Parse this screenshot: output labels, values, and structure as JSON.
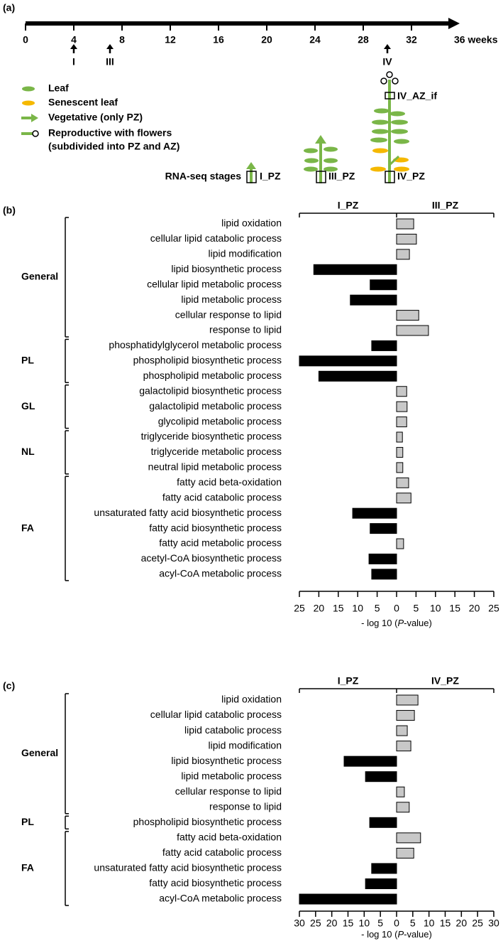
{
  "timeline": {
    "label": "(a)",
    "xlim": [
      0,
      36
    ],
    "ticks": [
      0,
      4,
      8,
      12,
      16,
      20,
      24,
      28,
      32,
      {
        "value": 36,
        "label": "36 weeks"
      }
    ],
    "stages": [
      {
        "label": "I",
        "week": 4
      },
      {
        "label": "III",
        "week": 7
      },
      {
        "label": "IV",
        "week": 30
      }
    ],
    "legend": {
      "leaf": "Leaf",
      "senescent": "Senescent leaf",
      "vegetative": "Vegetative (only PZ)",
      "reproductive": [
        "Reproductive with flowers",
        "(subdivided into PZ and AZ)"
      ]
    },
    "rnaseq_label": "RNA-seq stages",
    "samples": {
      "i_pz": "I_PZ",
      "iii_pz": "III_PZ",
      "iv_pz": "IV_PZ",
      "iv_az_if": "IV_AZ_if"
    }
  },
  "chart_data": [
    {
      "type": "bar",
      "orientation": "horizontal",
      "label": "(b)",
      "categories": [
        "lipid oxidation",
        "cellular lipid catabolic process",
        "lipid modification",
        "lipid biosynthetic process",
        "cellular lipid metabolic process",
        "lipid metabolic process",
        "cellular response to lipid",
        "response to lipid",
        "phosphatidylglycerol metabolic process",
        "phospholipid biosynthetic process",
        "phospholipid metabolic process",
        "galactolipid biosynthetic process",
        "galactolipid metabolic process",
        "glycolipid metabolic process",
        "triglyceride biosynthetic process",
        "triglyceride metabolic process",
        "neutral lipid metabolic process",
        "fatty acid beta-oxidation",
        "fatty acid catabolic process",
        "unsaturated fatty acid biosynthetic process",
        "fatty acid biosynthetic process",
        "fatty acid metabolic process",
        "acetyl-CoA biosynthetic process",
        "acyl-CoA metabolic process"
      ],
      "groups": [
        "General",
        "General",
        "General",
        "General",
        "General",
        "General",
        "General",
        "General",
        "PL",
        "PL",
        "PL",
        "GL",
        "GL",
        "GL",
        "NL",
        "NL",
        "NL",
        "FA",
        "FA",
        "FA",
        "FA",
        "FA",
        "FA",
        "FA"
      ],
      "series": [
        {
          "name": "I_PZ",
          "color": "#000000",
          "values": [
            null,
            null,
            null,
            -21.3,
            -6.8,
            -11.9,
            null,
            null,
            -6.4,
            -25,
            -20,
            null,
            null,
            null,
            null,
            null,
            null,
            null,
            null,
            -11.3,
            -6.8,
            null,
            -7.1,
            -6.4
          ]
        },
        {
          "name": "III_PZ",
          "color": "#c8c8c8",
          "values": [
            4.4,
            5.1,
            3.3,
            null,
            null,
            null,
            5.7,
            8.2,
            null,
            null,
            null,
            2.6,
            2.7,
            2.6,
            1.5,
            1.6,
            1.6,
            3.1,
            3.7,
            null,
            null,
            1.8,
            null,
            null
          ]
        }
      ],
      "xlim": [
        -25,
        25
      ],
      "xticks": [
        {
          "value": -25,
          "label": "25"
        },
        {
          "value": -20,
          "label": "20"
        },
        {
          "value": -15,
          "label": "15"
        },
        {
          "value": -10,
          "label": "10"
        },
        {
          "value": -5,
          "label": "5"
        },
        0,
        5,
        10,
        15,
        20,
        25
      ],
      "xlabel_parts": [
        {
          "text": "- log 10 ("
        },
        {
          "text": "P",
          "italic": true
        },
        {
          "text": "-value)"
        }
      ]
    },
    {
      "type": "bar",
      "orientation": "horizontal",
      "label": "(c)",
      "categories": [
        "lipid oxidation",
        "cellular lipid catabolic process",
        "lipid catabolic process",
        "lipid modification",
        "lipid biosynthetic process",
        "lipid metabolic process",
        "cellular response to lipid",
        "response to lipid",
        "phospholipid biosynthetic process",
        "fatty acid beta-oxidation",
        "fatty acid catabolic process",
        "unsaturated fatty acid biosynthetic process",
        "fatty acid biosynthetic process",
        "acyl-CoA metabolic process"
      ],
      "groups": [
        "General",
        "General",
        "General",
        "General",
        "General",
        "General",
        "General",
        "General",
        "PL",
        "FA",
        "FA",
        "FA",
        "FA",
        "FA"
      ],
      "series": [
        {
          "name": "I_PZ",
          "color": "#000000",
          "values": [
            null,
            null,
            null,
            null,
            -16.2,
            -9.6,
            null,
            null,
            -8.3,
            null,
            null,
            -7.7,
            -9.6,
            -30
          ]
        },
        {
          "name": "IV_PZ",
          "color": "#c8c8c8",
          "values": [
            6.6,
            5.5,
            3.3,
            4.4,
            null,
            null,
            2.4,
            3.9,
            null,
            7.4,
            5.3,
            null,
            null,
            null
          ]
        }
      ],
      "xlim": [
        -30,
        30
      ],
      "xticks": [
        {
          "value": -30,
          "label": "30"
        },
        {
          "value": -25,
          "label": "25"
        },
        {
          "value": -20,
          "label": "20"
        },
        {
          "value": -15,
          "label": "15"
        },
        {
          "value": -10,
          "label": "10"
        },
        {
          "value": -5,
          "label": "5"
        },
        0,
        5,
        10,
        15,
        20,
        25,
        30
      ],
      "xlabel_parts": [
        {
          "text": "- log 10 ("
        },
        {
          "text": "P",
          "italic": true
        },
        {
          "text": "-value)"
        }
      ]
    }
  ]
}
